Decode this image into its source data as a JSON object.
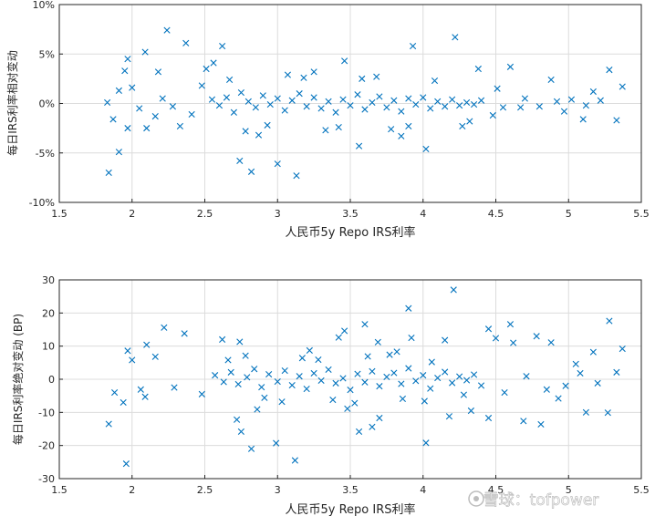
{
  "chart_data": [
    {
      "type": "scatter",
      "marker": "x",
      "color": "#0072BD",
      "grid": true,
      "xlabel": "人民币5y Repo IRS利率",
      "ylabel": "每日IRS利率相对变动",
      "xlim": [
        1.5,
        5.5
      ],
      "ylim": [
        -10,
        10
      ],
      "xticks": [
        "1.5",
        "2",
        "2.5",
        "3",
        "3.5",
        "4",
        "4.5",
        "5",
        "5.5"
      ],
      "yticks": [
        "-10%",
        "-5%",
        "0%",
        "5%",
        "10%"
      ],
      "points": [
        [
          2.24,
          7.4
        ],
        [
          2.37,
          6.1
        ],
        [
          2.62,
          5.8
        ],
        [
          2.09,
          5.2
        ],
        [
          1.97,
          4.5
        ],
        [
          3.93,
          5.8
        ],
        [
          4.22,
          6.7
        ],
        [
          5.28,
          3.4
        ],
        [
          5.37,
          1.7
        ],
        [
          5.33,
          -1.7
        ],
        [
          1.84,
          -7.0
        ],
        [
          1.91,
          -4.9
        ],
        [
          2.82,
          -6.9
        ],
        [
          3.13,
          -7.3
        ],
        [
          2.74,
          -5.8
        ],
        [
          3.0,
          -6.1
        ],
        [
          2.87,
          -3.2
        ],
        [
          3.56,
          -4.3
        ],
        [
          4.02,
          -4.6
        ],
        [
          3.85,
          -3.3
        ],
        [
          2.18,
          3.2
        ],
        [
          2.56,
          4.1
        ],
        [
          2.48,
          1.8
        ],
        [
          1.87,
          -1.6
        ],
        [
          1.97,
          -2.5
        ],
        [
          2.1,
          -2.5
        ],
        [
          2.16,
          -1.3
        ],
        [
          2.33,
          -2.3
        ],
        [
          2.51,
          3.5
        ],
        [
          4.6,
          3.7
        ],
        [
          4.38,
          3.5
        ],
        [
          4.88,
          2.4
        ],
        [
          5.17,
          1.2
        ],
        [
          5.1,
          -1.6
        ],
        [
          4.97,
          -0.8
        ],
        [
          4.67,
          -0.4
        ],
        [
          4.27,
          -2.3
        ],
        [
          4.51,
          1.5
        ],
        [
          3.46,
          4.3
        ],
        [
          3.25,
          3.2
        ],
        [
          1.83,
          0.1
        ],
        [
          1.91,
          1.3
        ],
        [
          1.95,
          3.3
        ],
        [
          2.0,
          1.6
        ],
        [
          2.05,
          -0.5
        ],
        [
          2.21,
          0.5
        ],
        [
          2.28,
          -0.3
        ],
        [
          2.41,
          -1.1
        ],
        [
          2.55,
          0.4
        ],
        [
          2.6,
          -0.2
        ],
        [
          2.65,
          0.6
        ],
        [
          2.7,
          -0.9
        ],
        [
          2.75,
          1.1
        ],
        [
          2.8,
          0.2
        ],
        [
          2.85,
          -0.4
        ],
        [
          2.9,
          0.8
        ],
        [
          2.95,
          -0.1
        ],
        [
          3.0,
          0.5
        ],
        [
          3.05,
          -0.7
        ],
        [
          3.1,
          0.3
        ],
        [
          3.15,
          1.0
        ],
        [
          3.2,
          -0.3
        ],
        [
          3.25,
          0.6
        ],
        [
          3.3,
          -0.5
        ],
        [
          3.35,
          0.2
        ],
        [
          3.4,
          -0.9
        ],
        [
          3.45,
          0.4
        ],
        [
          3.5,
          -0.2
        ],
        [
          3.55,
          0.9
        ],
        [
          3.6,
          -0.6
        ],
        [
          3.65,
          0.1
        ],
        [
          3.7,
          0.7
        ],
        [
          3.75,
          -0.4
        ],
        [
          3.8,
          0.3
        ],
        [
          3.85,
          -0.8
        ],
        [
          3.9,
          0.5
        ],
        [
          3.95,
          -0.1
        ],
        [
          4.0,
          0.6
        ],
        [
          4.05,
          -0.5
        ],
        [
          4.1,
          0.2
        ],
        [
          4.15,
          -0.3
        ],
        [
          4.2,
          0.4
        ],
        [
          4.25,
          -0.2
        ],
        [
          4.3,
          0.1
        ],
        [
          4.35,
          -0.1
        ],
        [
          4.4,
          0.3
        ],
        [
          4.55,
          -0.4
        ],
        [
          4.7,
          0.5
        ],
        [
          4.8,
          -0.3
        ],
        [
          4.92,
          0.2
        ],
        [
          5.02,
          0.4
        ],
        [
          5.12,
          -0.2
        ],
        [
          5.22,
          0.3
        ],
        [
          2.67,
          2.4
        ],
        [
          2.93,
          -2.2
        ],
        [
          3.18,
          2.6
        ],
        [
          3.42,
          -2.4
        ],
        [
          3.68,
          2.7
        ],
        [
          3.9,
          -2.3
        ],
        [
          2.78,
          -2.8
        ],
        [
          3.07,
          2.9
        ],
        [
          3.33,
          -2.7
        ],
        [
          3.58,
          2.5
        ],
        [
          3.78,
          -2.6
        ],
        [
          4.08,
          2.3
        ],
        [
          4.32,
          -1.8
        ],
        [
          4.48,
          -1.2
        ]
      ]
    },
    {
      "type": "scatter",
      "marker": "x",
      "color": "#0072BD",
      "grid": true,
      "xlabel": "人民币5y Repo IRS利率",
      "ylabel": "每日IRS利率绝对变动 (BP)",
      "xlim": [
        1.5,
        5.5
      ],
      "ylim": [
        -30,
        30
      ],
      "xticks": [
        "1.5",
        "2",
        "2.5",
        "3",
        "3.5",
        "4",
        "4.5",
        "5",
        "5.5"
      ],
      "yticks": [
        "-30",
        "-20",
        "-10",
        "0",
        "10",
        "20",
        "30"
      ],
      "points": [
        [
          4.21,
          27.0
        ],
        [
          3.9,
          21.4
        ],
        [
          5.28,
          17.6
        ],
        [
          2.22,
          15.6
        ],
        [
          4.45,
          15.2
        ],
        [
          4.6,
          16.6
        ],
        [
          3.6,
          16.6
        ],
        [
          3.46,
          14.6
        ],
        [
          5.37,
          9.2
        ],
        [
          4.78,
          13.0
        ],
        [
          4.45,
          -11.7
        ],
        [
          4.69,
          -12.6
        ],
        [
          4.81,
          -13.6
        ],
        [
          5.12,
          -10.0
        ],
        [
          5.27,
          -10.1
        ],
        [
          1.96,
          -25.5
        ],
        [
          3.12,
          -24.5
        ],
        [
          2.82,
          -21.0
        ],
        [
          2.99,
          -19.3
        ],
        [
          4.02,
          -19.2
        ],
        [
          1.84,
          -13.5
        ],
        [
          2.75,
          -15.8
        ],
        [
          2.72,
          -12.2
        ],
        [
          3.56,
          -15.8
        ],
        [
          3.65,
          -14.4
        ],
        [
          3.7,
          -11.7
        ],
        [
          4.18,
          -11.2
        ],
        [
          4.33,
          -9.5
        ],
        [
          2.1,
          10.4
        ],
        [
          1.97,
          8.6
        ],
        [
          2.0,
          5.8
        ],
        [
          2.16,
          6.8
        ],
        [
          2.36,
          13.8
        ],
        [
          2.62,
          12.0
        ],
        [
          2.74,
          11.3
        ],
        [
          3.42,
          12.6
        ],
        [
          3.69,
          11.2
        ],
        [
          3.92,
          12.5
        ],
        [
          4.15,
          11.8
        ],
        [
          4.5,
          12.4
        ],
        [
          4.62,
          11.0
        ],
        [
          4.88,
          11.1
        ],
        [
          5.17,
          8.2
        ],
        [
          5.05,
          4.6
        ],
        [
          4.98,
          -2.0
        ],
        [
          5.08,
          1.8
        ],
        [
          5.2,
          -1.2
        ],
        [
          5.33,
          2.1
        ],
        [
          2.29,
          -2.5
        ],
        [
          2.48,
          -4.5
        ],
        [
          1.88,
          -4.0
        ],
        [
          1.94,
          -7.0
        ],
        [
          2.06,
          -3.1
        ],
        [
          2.09,
          -5.3
        ],
        [
          2.57,
          1.2
        ],
        [
          2.63,
          -0.8
        ],
        [
          2.68,
          2.1
        ],
        [
          2.73,
          -1.5
        ],
        [
          2.79,
          0.6
        ],
        [
          2.84,
          3.1
        ],
        [
          2.89,
          -2.4
        ],
        [
          2.94,
          1.5
        ],
        [
          3.0,
          -0.7
        ],
        [
          3.05,
          2.6
        ],
        [
          3.1,
          -1.8
        ],
        [
          3.15,
          0.9
        ],
        [
          3.2,
          -2.9
        ],
        [
          3.25,
          1.8
        ],
        [
          3.3,
          -0.4
        ],
        [
          3.35,
          2.9
        ],
        [
          3.4,
          -1.2
        ],
        [
          3.45,
          0.3
        ],
        [
          3.5,
          -3.2
        ],
        [
          3.55,
          1.6
        ],
        [
          3.6,
          -0.9
        ],
        [
          3.65,
          2.4
        ],
        [
          3.7,
          -2.1
        ],
        [
          3.75,
          0.7
        ],
        [
          3.8,
          1.9
        ],
        [
          3.85,
          -1.4
        ],
        [
          3.9,
          3.3
        ],
        [
          3.95,
          -0.5
        ],
        [
          4.0,
          1.2
        ],
        [
          4.05,
          -2.8
        ],
        [
          4.1,
          0.4
        ],
        [
          4.15,
          2.2
        ],
        [
          4.2,
          -1.1
        ],
        [
          4.25,
          0.8
        ],
        [
          4.3,
          -0.3
        ],
        [
          4.35,
          1.4
        ],
        [
          4.4,
          -1.9
        ],
        [
          4.56,
          -4.0
        ],
        [
          4.71,
          0.9
        ],
        [
          4.85,
          -3.1
        ],
        [
          4.93,
          -5.8
        ],
        [
          2.66,
          5.8
        ],
        [
          2.91,
          -5.6
        ],
        [
          3.17,
          6.4
        ],
        [
          3.38,
          -6.2
        ],
        [
          3.62,
          6.9
        ],
        [
          3.86,
          -5.9
        ],
        [
          4.06,
          5.2
        ],
        [
          4.28,
          -4.7
        ],
        [
          2.78,
          7.1
        ],
        [
          3.03,
          -6.8
        ],
        [
          3.28,
          5.9
        ],
        [
          3.53,
          -7.2
        ],
        [
          3.77,
          7.4
        ],
        [
          4.01,
          -6.6
        ],
        [
          2.86,
          -9.1
        ],
        [
          3.22,
          8.7
        ],
        [
          3.48,
          -8.9
        ],
        [
          3.82,
          8.3
        ]
      ]
    }
  ],
  "watermark": "雪球：tofpower"
}
